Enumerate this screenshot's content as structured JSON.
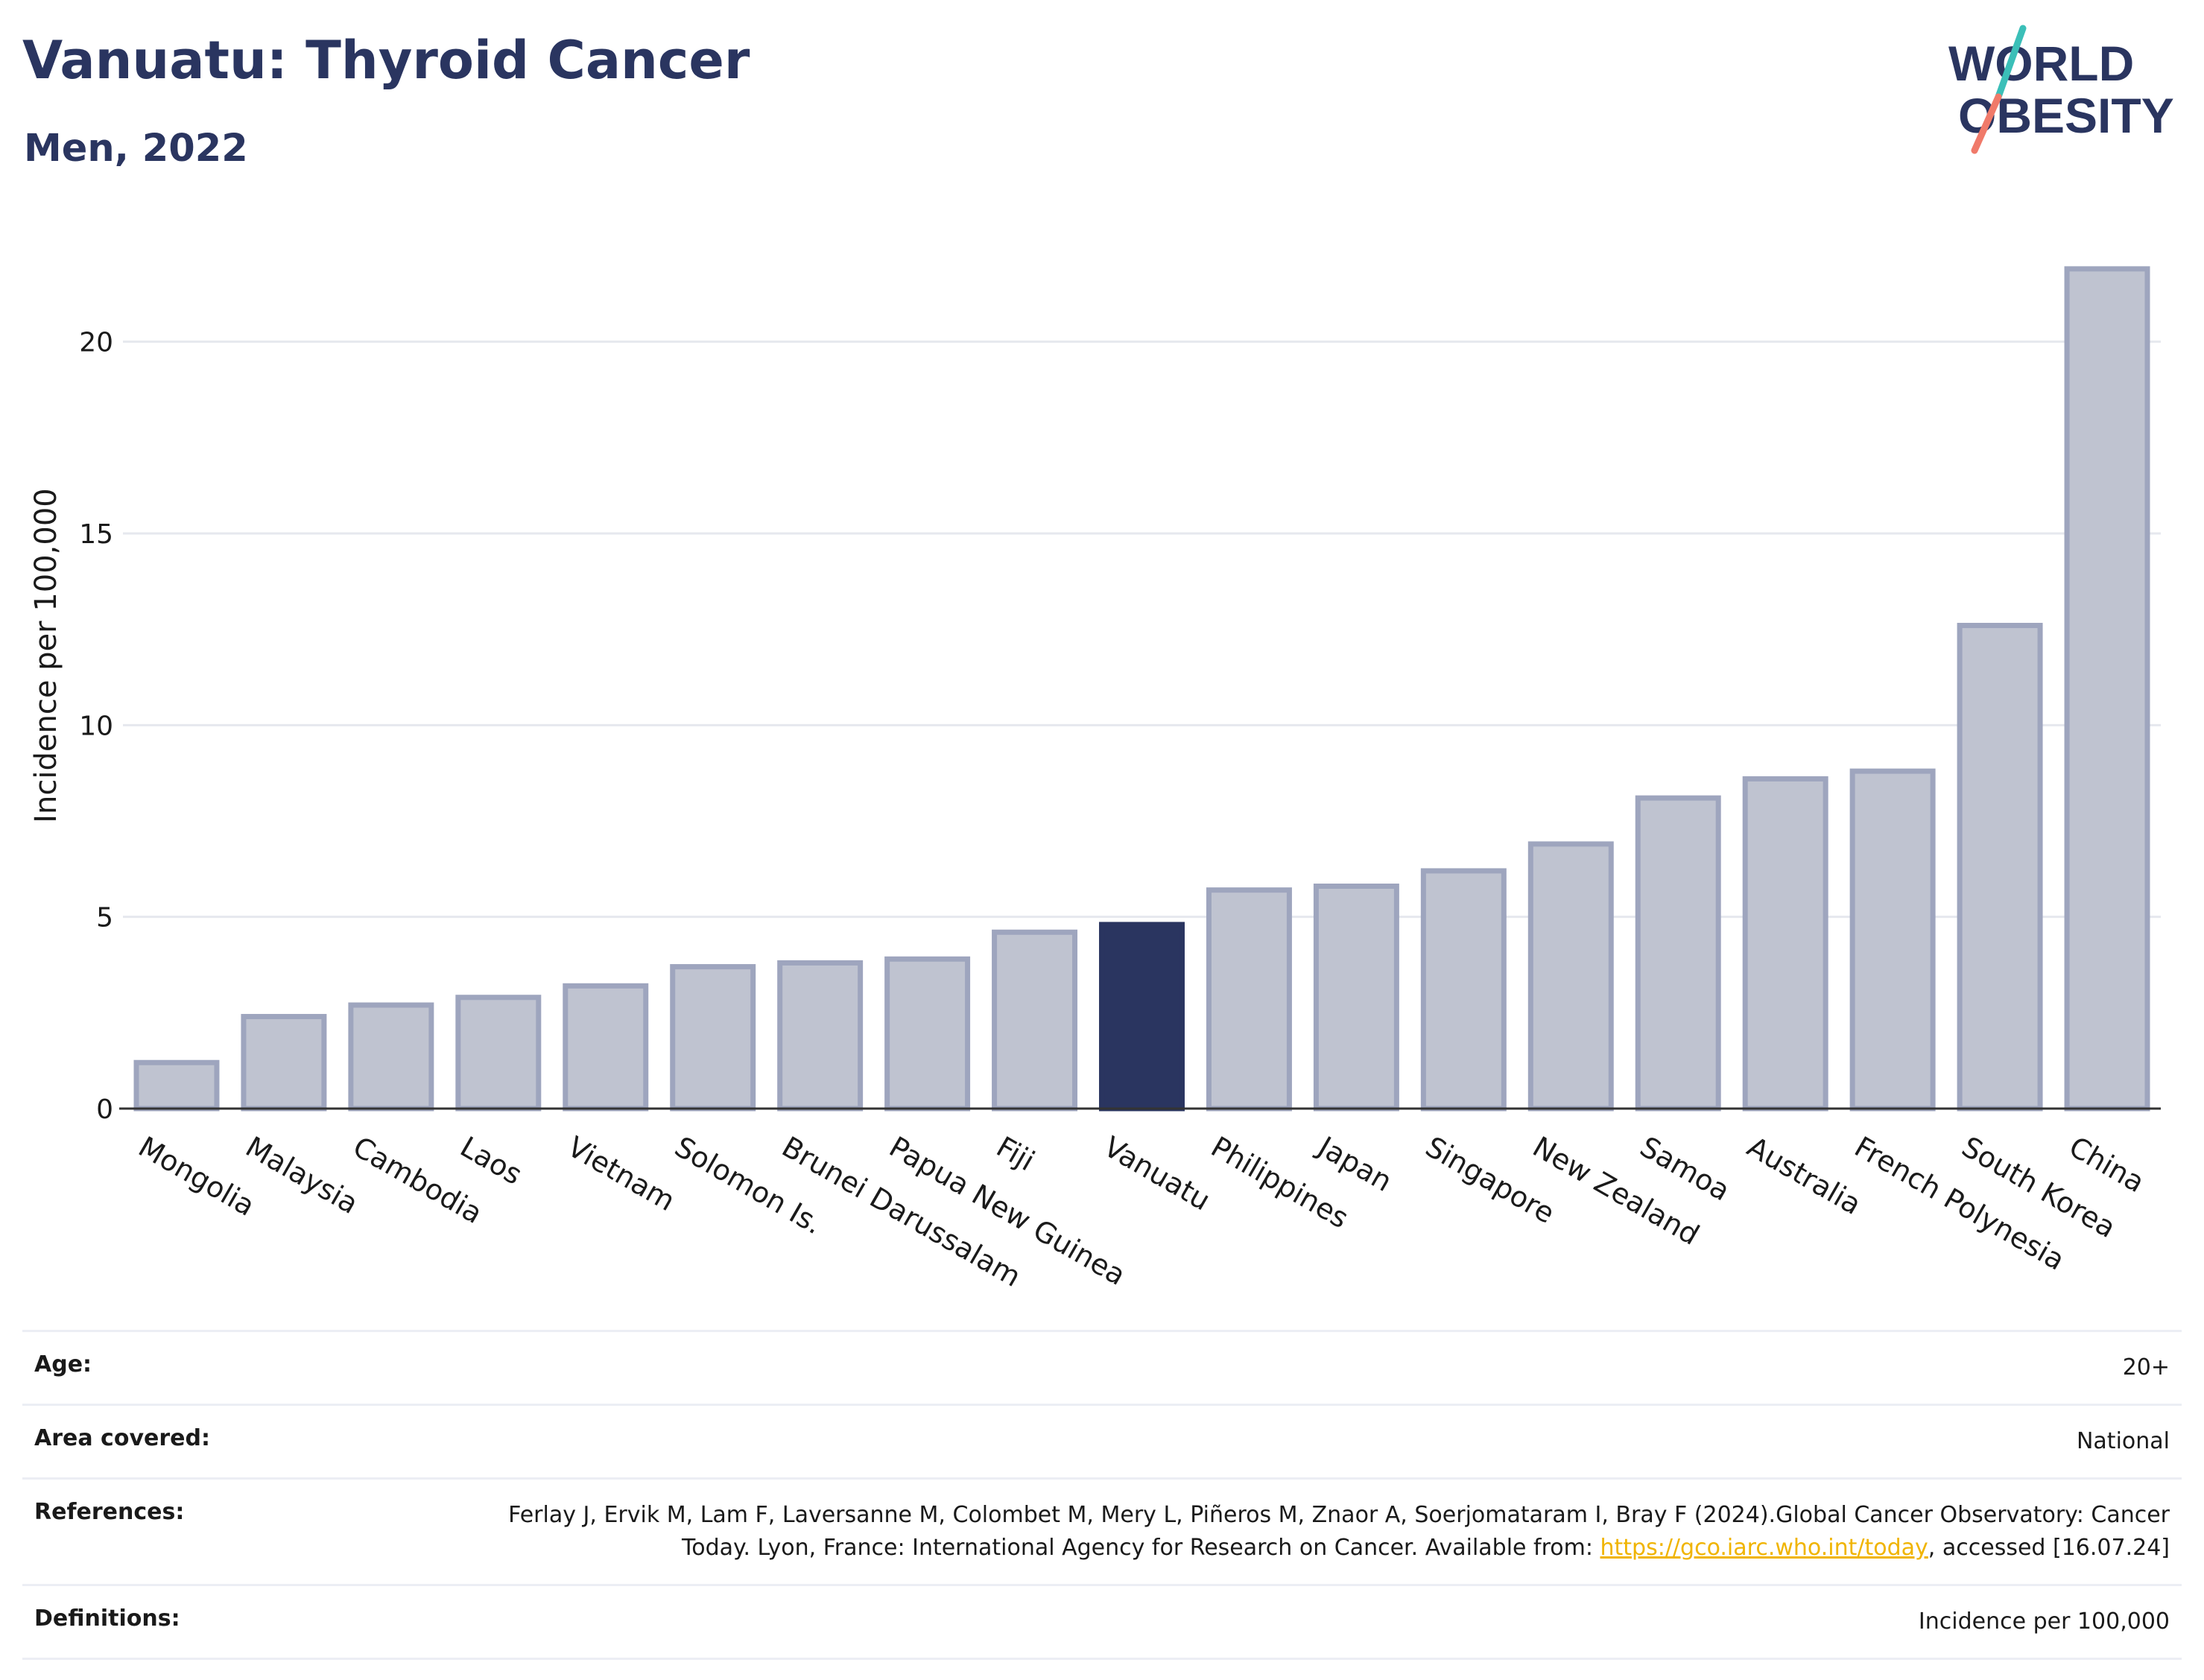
{
  "title": "Vanuatu: Thyroid Cancer",
  "subtitle": "Men, 2022",
  "logo": {
    "line1": "WORLD",
    "line2": "OBESITY"
  },
  "colors": {
    "highlight": "#2a3560",
    "bar_fill": "#bfc3d0",
    "bar_stroke": "#9ea5be",
    "link": "#f0b400",
    "logo_slash_top": "#3bbfb8",
    "logo_slash_bottom": "#f07a6a"
  },
  "chart_data": {
    "type": "bar",
    "title": "Vanuatu: Thyroid Cancer",
    "subtitle": "Men, 2022",
    "ylabel": "Incidence per 100,000",
    "xlabel": "",
    "ylim": [
      0,
      22.5
    ],
    "yticks": [
      0,
      5,
      10,
      15,
      20
    ],
    "highlight": "Vanuatu",
    "grid": true,
    "categories": [
      "Mongolia",
      "Malaysia",
      "Cambodia",
      "Laos",
      "Vietnam",
      "Solomon Is.",
      "Brunei Darussalam",
      "Papua New Guinea",
      "Fiji",
      "Vanuatu",
      "Philippines",
      "Japan",
      "Singapore",
      "New Zealand",
      "Samoa",
      "Australia",
      "French Polynesia",
      "South Korea",
      "China"
    ],
    "values": [
      1.2,
      2.4,
      2.7,
      2.9,
      3.2,
      3.7,
      3.8,
      3.9,
      4.6,
      4.8,
      5.7,
      5.8,
      6.2,
      6.9,
      8.1,
      8.6,
      8.8,
      12.6,
      21.9
    ]
  },
  "meta": {
    "age": {
      "label": "Age:",
      "value": "20+"
    },
    "area": {
      "label": "Area covered:",
      "value": "National"
    },
    "references": {
      "label": "References:",
      "text1": "Ferlay J, Ervik M, Lam F, Laversanne M, Colombet M, Mery L, Piñeros M, Znaor A, Soerjomataram I, Bray F (2024).Global Cancer Observatory: Cancer Today. Lyon, France: International Agency for Research on Cancer. Available from: ",
      "link": "https://gco.iarc.who.int/today",
      "text2": ", accessed [16.07.24]"
    },
    "definitions": {
      "label": "Definitions:",
      "value": "Incidence per 100,000"
    }
  }
}
